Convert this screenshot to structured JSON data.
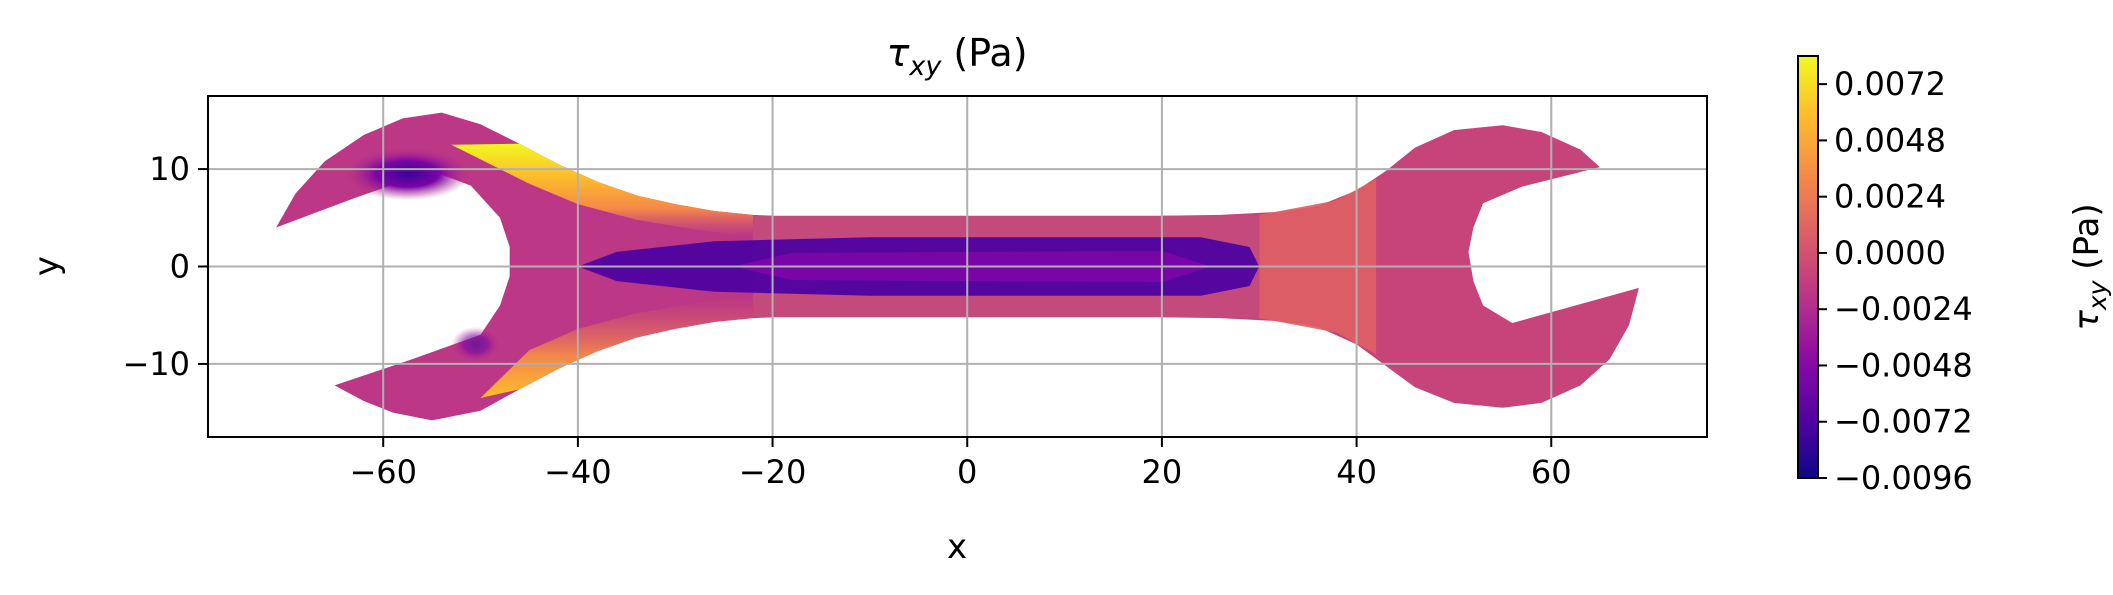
{
  "chart_data": {
    "type": "heatmap",
    "title": {
      "main": "τ",
      "sub": "xy",
      "unit": " (Pa)"
    },
    "xlabel": "x",
    "ylabel": "y",
    "xlim": [
      -78,
      76
    ],
    "ylim": [
      -17.5,
      17.5
    ],
    "xticks": [
      -60,
      -40,
      -20,
      0,
      20,
      40,
      60
    ],
    "xtick_labels": [
      "−60",
      "−40",
      "−20",
      "0",
      "20",
      "40",
      "60"
    ],
    "yticks": [
      -10,
      0,
      10
    ],
    "ytick_labels": [
      "−10",
      "0",
      "10"
    ],
    "grid": true,
    "colormap": "plasma",
    "colorbar": {
      "label": {
        "main": "τ",
        "sub": "xy",
        "unit": " (Pa)"
      },
      "vmin": -0.0096,
      "vmax": 0.0084,
      "ticks": [
        -0.0096,
        -0.0072,
        -0.0048,
        -0.0024,
        0.0,
        0.0024,
        0.0048,
        0.0072
      ],
      "tick_labels": [
        "−0.0096",
        "−0.0072",
        "−0.0048",
        "−0.0024",
        "0.0000",
        "0.0024",
        "0.0048",
        "0.0072"
      ]
    },
    "field_regions": [
      {
        "name": "left-head",
        "value": -0.0016
      },
      {
        "name": "right-head",
        "value": -0.0008
      },
      {
        "name": "handle-center",
        "value": -0.0072
      },
      {
        "name": "left-neck-upper-edge",
        "value": 0.0072
      },
      {
        "name": "left-neck-lower-edge",
        "value": 0.006
      },
      {
        "name": "left-inner-corner",
        "value": -0.009
      },
      {
        "name": "right-neck",
        "value": 0.001
      }
    ]
  },
  "colors": {
    "plasma": [
      "#0d0887",
      "#5302a3",
      "#8b0aa5",
      "#b83289",
      "#db5c68",
      "#f48849",
      "#febd2a",
      "#f0f921"
    ],
    "grid": "#b0b0b0",
    "frame": "#000000"
  }
}
